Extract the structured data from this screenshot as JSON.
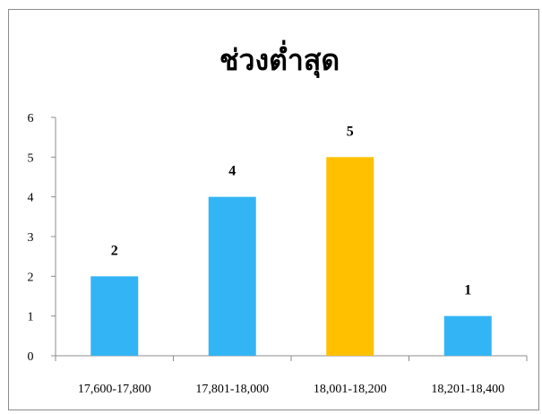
{
  "chart_data": {
    "type": "bar",
    "title": "ช่วงต่ำสุด",
    "xlabel": "",
    "ylabel": "",
    "categories": [
      "17,600-17,800",
      "17,801-18,000",
      "18,001-18,200",
      "18,201-18,400"
    ],
    "values": [
      2,
      4,
      5,
      1
    ],
    "data_labels": [
      "2",
      "4",
      "5",
      "1"
    ],
    "bar_colors": [
      "#33b5f5",
      "#33b5f5",
      "#ffc000",
      "#33b5f5"
    ],
    "ylim": [
      0,
      6
    ],
    "yticks": [
      "0",
      "1",
      "2",
      "3",
      "4",
      "5",
      "6"
    ],
    "grid": false,
    "legend": "none"
  }
}
